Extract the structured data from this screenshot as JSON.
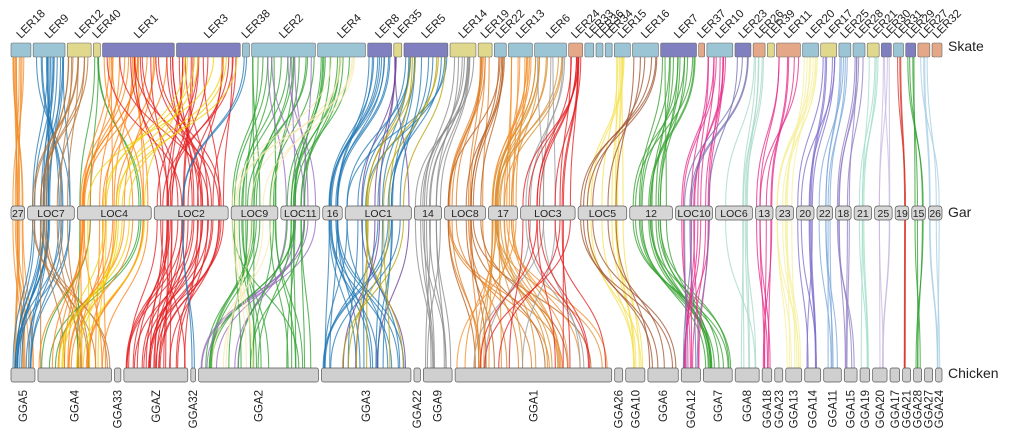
{
  "rows": {
    "top": "Skate",
    "middle": "Gar",
    "bottom": "Chicken"
  },
  "skate": [
    {
      "label": "LER18",
      "color": "#9bc4d4",
      "w": 1
    },
    {
      "label": "LER9",
      "color": "#9bc4d4",
      "w": 1.6
    },
    {
      "label": "LER12",
      "color": "#e0d88c",
      "w": 1.2
    },
    {
      "label": "LER40",
      "color": "#e0d88c",
      "w": 0.35
    },
    {
      "label": "LER1",
      "color": "#8080c0",
      "w": 3.6
    },
    {
      "label": "LER3",
      "color": "#8080c0",
      "w": 3.2
    },
    {
      "label": "LER38",
      "color": "#9bc4d4",
      "w": 0.35
    },
    {
      "label": "LER2",
      "color": "#9bc4d4",
      "w": 3.2
    },
    {
      "label": "LER4",
      "color": "#9bc4d4",
      "w": 2.4
    },
    {
      "label": "LER8",
      "color": "#8080c0",
      "w": 1.2
    },
    {
      "label": "LER35",
      "color": "#e0d88c",
      "w": 0.4
    },
    {
      "label": "LER5",
      "color": "#8080c0",
      "w": 2.2
    },
    {
      "label": "LER14",
      "color": "#e0d88c",
      "w": 1.3
    },
    {
      "label": "LER19",
      "color": "#e0d88c",
      "w": 0.7
    },
    {
      "label": "LER22",
      "color": "#9bc4d4",
      "w": 0.6
    },
    {
      "label": "LER13",
      "color": "#9bc4d4",
      "w": 1.2
    },
    {
      "label": "LER6",
      "color": "#9bc4d4",
      "w": 1.6
    },
    {
      "label": "LER24",
      "color": "#e4a888",
      "w": 0.7
    },
    {
      "label": "LER33",
      "color": "#9bc4d4",
      "w": 0.45
    },
    {
      "label": "LER36",
      "color": "#9bc4d4",
      "w": 0.35
    },
    {
      "label": "LER34",
      "color": "#9bc4d4",
      "w": 0.35
    },
    {
      "label": "LER15",
      "color": "#9bc4d4",
      "w": 0.8
    },
    {
      "label": "LER16",
      "color": "#9bc4d4",
      "w": 1.3
    },
    {
      "label": "LER7",
      "color": "#8080c0",
      "w": 1.8
    },
    {
      "label": "LER37",
      "color": "#e4a888",
      "w": 0.3
    },
    {
      "label": "LER10",
      "color": "#9bc4d4",
      "w": 1.3
    },
    {
      "label": "LER23",
      "color": "#8080c0",
      "w": 0.8
    },
    {
      "label": "LER26",
      "color": "#e4a888",
      "w": 0.6
    },
    {
      "label": "LER39",
      "color": "#e0d88c",
      "w": 0.35
    },
    {
      "label": "LER11",
      "color": "#e4a888",
      "w": 1.2
    },
    {
      "label": "LER20",
      "color": "#9bc4d4",
      "w": 0.8
    },
    {
      "label": "LER17",
      "color": "#e0d88c",
      "w": 0.8
    },
    {
      "label": "LER25",
      "color": "#9bc4d4",
      "w": 0.6
    },
    {
      "label": "LER28",
      "color": "#9bc4d4",
      "w": 0.6
    },
    {
      "label": "LER21",
      "color": "#e0d88c",
      "w": 0.6
    },
    {
      "label": "LER30",
      "color": "#8080c0",
      "w": 0.5
    },
    {
      "label": "LER31",
      "color": "#9bc4d4",
      "w": 0.5
    },
    {
      "label": "LER29",
      "color": "#8080c0",
      "w": 0.5
    },
    {
      "label": "LER27",
      "color": "#e4a888",
      "w": 0.6
    },
    {
      "label": "LER32",
      "color": "#e4a888",
      "w": 0.5
    }
  ],
  "gar": [
    {
      "label": "27",
      "w": 0.7
    },
    {
      "label": "LOC7",
      "w": 2.4
    },
    {
      "label": "LOC4",
      "w": 3.8
    },
    {
      "label": "LOC2",
      "w": 3.8
    },
    {
      "label": "LOC9",
      "w": 2.4
    },
    {
      "label": "LOC11",
      "w": 2.0
    },
    {
      "label": "16",
      "w": 1.0
    },
    {
      "label": "LOC1",
      "w": 3.4
    },
    {
      "label": "14",
      "w": 1.4
    },
    {
      "label": "LOC8",
      "w": 2.1
    },
    {
      "label": "17",
      "w": 1.5
    },
    {
      "label": "LOC3",
      "w": 2.8
    },
    {
      "label": "LOC5",
      "w": 2.5
    },
    {
      "label": "12",
      "w": 2.2
    },
    {
      "label": "LOC10",
      "w": 1.9
    },
    {
      "label": "LOC6",
      "w": 1.9
    },
    {
      "label": "13",
      "w": 0.9
    },
    {
      "label": "23",
      "w": 0.9
    },
    {
      "label": "20",
      "w": 0.9
    },
    {
      "label": "22",
      "w": 0.8
    },
    {
      "label": "18",
      "w": 0.8
    },
    {
      "label": "21",
      "w": 0.9
    },
    {
      "label": "25",
      "w": 0.9
    },
    {
      "label": "19",
      "w": 0.7
    },
    {
      "label": "15",
      "w": 0.7
    },
    {
      "label": "26",
      "w": 0.7
    }
  ],
  "chicken": [
    {
      "label": "GGA5",
      "w": 1.5
    },
    {
      "label": "GGA4",
      "w": 4.6
    },
    {
      "label": "GGA33",
      "w": 0.4
    },
    {
      "label": "GGAZ",
      "w": 4.0
    },
    {
      "label": "GGA32",
      "w": 0.3
    },
    {
      "label": "GGA2",
      "w": 7.5
    },
    {
      "label": "GGA3",
      "w": 5.6
    },
    {
      "label": "GGA22",
      "w": 0.4
    },
    {
      "label": "GGA9",
      "w": 1.8
    },
    {
      "label": "GGA1",
      "w": 9.8
    },
    {
      "label": "GGA26",
      "w": 0.5
    },
    {
      "label": "GGA10",
      "w": 1.2
    },
    {
      "label": "GGA6",
      "w": 1.9
    },
    {
      "label": "GGA12",
      "w": 1.2
    },
    {
      "label": "GGA7",
      "w": 1.8
    },
    {
      "label": "GGA8",
      "w": 1.5
    },
    {
      "label": "GGA18",
      "w": 0.6
    },
    {
      "label": "GGA23",
      "w": 0.5
    },
    {
      "label": "GGA13",
      "w": 1.0
    },
    {
      "label": "GGA14",
      "w": 1.0
    },
    {
      "label": "GGA11",
      "w": 1.1
    },
    {
      "label": "GGA15",
      "w": 0.8
    },
    {
      "label": "GGA19",
      "w": 0.6
    },
    {
      "label": "GGA20",
      "w": 0.9
    },
    {
      "label": "GGA17",
      "w": 0.6
    },
    {
      "label": "GGA21",
      "w": 0.5
    },
    {
      "label": "GGA28",
      "w": 0.5
    },
    {
      "label": "GGA27",
      "w": 0.5
    },
    {
      "label": "GGA24",
      "w": 0.4
    }
  ],
  "links": [
    {
      "skate": 0,
      "gar": 0,
      "chicken": 0,
      "color": "#f28c28",
      "n": 10
    },
    {
      "skate": 1,
      "gar": 1,
      "chicken": 0,
      "color": "#1f77b4",
      "n": 16
    },
    {
      "skate": 2,
      "gar": 1,
      "chicken": 1,
      "color": "#b87333",
      "n": 10
    },
    {
      "skate": 3,
      "gar": 2,
      "chicken": 1,
      "color": "#2ca02c",
      "n": 4
    },
    {
      "skate": 4,
      "gar": 2,
      "chicken": 1,
      "color": "#ff7f0e",
      "n": 18
    },
    {
      "skate": 4,
      "gar": 3,
      "chicken": 3,
      "color": "#e41a1c",
      "n": 14
    },
    {
      "skate": 5,
      "gar": 3,
      "chicken": 3,
      "color": "#e41a1c",
      "n": 16
    },
    {
      "skate": 5,
      "gar": 2,
      "chicken": 1,
      "color": "#f0d000",
      "n": 8
    },
    {
      "skate": 6,
      "gar": 3,
      "chicken": 4,
      "color": "#1f77b4",
      "n": 2
    },
    {
      "skate": 7,
      "gar": 4,
      "chicken": 5,
      "color": "#2ca02c",
      "n": 16
    },
    {
      "skate": 7,
      "gar": 5,
      "chicken": 5,
      "color": "#9467bd",
      "n": 6
    },
    {
      "skate": 8,
      "gar": 5,
      "chicken": 5,
      "color": "#2ca02c",
      "n": 10
    },
    {
      "skate": 8,
      "gar": 4,
      "chicken": 5,
      "color": "#f7e8b0",
      "n": 6
    },
    {
      "skate": 9,
      "gar": 6,
      "chicken": 6,
      "color": "#1f77b4",
      "n": 10
    },
    {
      "skate": 10,
      "gar": 7,
      "chicken": 6,
      "color": "#6a3d9a",
      "n": 4
    },
    {
      "skate": 11,
      "gar": 7,
      "chicken": 6,
      "color": "#1f77b4",
      "n": 12
    },
    {
      "skate": 11,
      "gar": 7,
      "chicken": 6,
      "color": "#b5a000",
      "n": 6
    },
    {
      "skate": 12,
      "gar": 8,
      "chicken": 8,
      "color": "#888888",
      "n": 10
    },
    {
      "skate": 13,
      "gar": 9,
      "chicken": 9,
      "color": "#e07b20",
      "n": 8
    },
    {
      "skate": 14,
      "gar": 9,
      "chicken": 9,
      "color": "#b85c1c",
      "n": 6
    },
    {
      "skate": 15,
      "gar": 10,
      "chicken": 9,
      "color": "#f28c28",
      "n": 10
    },
    {
      "skate": 16,
      "gar": 10,
      "chicken": 9,
      "color": "#d98e2c",
      "n": 10
    },
    {
      "skate": 16,
      "gar": 11,
      "chicken": 9,
      "color": "#999999",
      "n": 5
    },
    {
      "skate": 17,
      "gar": 11,
      "chicken": 9,
      "color": "#e41a1c",
      "n": 10
    },
    {
      "skate": 21,
      "gar": 12,
      "chicken": 11,
      "color": "#f5e050",
      "n": 8
    },
    {
      "skate": 22,
      "gar": 12,
      "chicken": 12,
      "color": "#a0522d",
      "n": 6
    },
    {
      "skate": 23,
      "gar": 13,
      "chicken": 14,
      "color": "#33a02c",
      "n": 14
    },
    {
      "skate": 25,
      "gar": 14,
      "chicken": 13,
      "color": "#e7298a",
      "n": 10
    },
    {
      "skate": 26,
      "gar": 14,
      "chicken": 13,
      "color": "#7570b3",
      "n": 4
    },
    {
      "skate": 27,
      "gar": 15,
      "chicken": 15,
      "color": "#a6d8c8",
      "n": 6
    },
    {
      "skate": 29,
      "gar": 16,
      "chicken": 16,
      "color": "#e7298a",
      "n": 6
    },
    {
      "skate": 30,
      "gar": 17,
      "chicken": 18,
      "color": "#f5ef9a",
      "n": 8
    },
    {
      "skate": 31,
      "gar": 18,
      "chicken": 19,
      "color": "#7b6ccc",
      "n": 6
    },
    {
      "skate": 32,
      "gar": 19,
      "chicken": 20,
      "color": "#7ba7d9",
      "n": 5
    },
    {
      "skate": 33,
      "gar": 20,
      "chicken": 21,
      "color": "#8e7cc3",
      "n": 5
    },
    {
      "skate": 34,
      "gar": 21,
      "chicken": 22,
      "color": "#9fdcc8",
      "n": 4
    },
    {
      "skate": 35,
      "gar": 22,
      "chicken": 23,
      "color": "#c7b8e0",
      "n": 4
    },
    {
      "skate": 36,
      "gar": 23,
      "chicken": 25,
      "color": "#d73027",
      "n": 3
    },
    {
      "skate": 37,
      "gar": 24,
      "chicken": 26,
      "color": "#2ca02c",
      "n": 4
    },
    {
      "skate": 38,
      "gar": 25,
      "chicken": 28,
      "color": "#a6cee3",
      "n": 4
    }
  ]
}
